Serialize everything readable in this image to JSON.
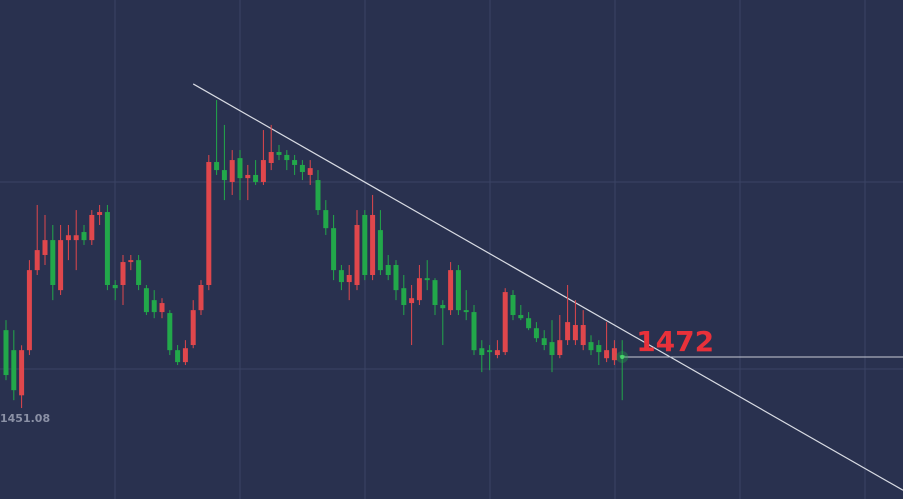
{
  "chart_data": {
    "type": "candlestick",
    "up_color": "#e0474c",
    "down_color": "#22a84a",
    "xlim": [
      -0.77,
      115
    ],
    "ylim": [
      1413.8,
      1618.3
    ],
    "open": [
      1483.0,
      1474.8,
      1456.3,
      1474.8,
      1507.6,
      1513.8,
      1519.9,
      1499.4,
      1519.9,
      1519.9,
      1523.2,
      1519.9,
      1530.2,
      1531.4,
      1501.5,
      1501.5,
      1510.9,
      1511.7,
      1500.2,
      1495.3,
      1490.4,
      1490.0,
      1474.8,
      1469.9,
      1476.9,
      1491.2,
      1501.5,
      1551.9,
      1548.6,
      1543.7,
      1553.5,
      1545.3,
      1546.6,
      1543.7,
      1551.5,
      1556.0,
      1554.8,
      1552.7,
      1550.7,
      1546.6,
      1544.5,
      1532.2,
      1524.8,
      1507.6,
      1502.7,
      1501.5,
      1530.2,
      1505.6,
      1524.0,
      1509.7,
      1509.7,
      1500.2,
      1494.1,
      1495.3,
      1504.3,
      1503.5,
      1493.3,
      1491.2,
      1507.6,
      1491.2,
      1490.4,
      1475.6,
      1474.8,
      1472.8,
      1474.0,
      1497.4,
      1489.2,
      1487.9,
      1483.8,
      1479.7,
      1478.1,
      1472.8,
      1478.9,
      1478.9,
      1476.9,
      1478.1,
      1476.9,
      1471.5,
      1470.7,
      1472.8
    ],
    "high": [
      1487.1,
      1483.0,
      1476.8,
      1511.7,
      1534.3,
      1530.2,
      1526.1,
      1526.1,
      1526.1,
      1532.2,
      1526.1,
      1532.2,
      1534.3,
      1534.3,
      1503.5,
      1513.8,
      1513.8,
      1513.8,
      1501.5,
      1499.4,
      1496.1,
      1491.2,
      1476.9,
      1478.9,
      1495.3,
      1503.5,
      1554.8,
      1577.3,
      1567.1,
      1556.8,
      1556.8,
      1550.7,
      1552.7,
      1565.0,
      1567.1,
      1558.9,
      1556.8,
      1554.8,
      1552.7,
      1552.7,
      1548.6,
      1536.3,
      1530.2,
      1509.7,
      1509.7,
      1532.2,
      1532.2,
      1538.4,
      1532.2,
      1513.8,
      1511.7,
      1505.6,
      1501.5,
      1509.7,
      1511.7,
      1504.3,
      1495.3,
      1510.9,
      1509.7,
      1499.4,
      1493.3,
      1478.9,
      1476.9,
      1478.9,
      1500.2,
      1499.4,
      1493.3,
      1490.4,
      1486.3,
      1483.0,
      1487.1,
      1489.2,
      1501.5,
      1495.3,
      1491.2,
      1480.9,
      1478.9,
      1486.3,
      1478.9,
      1478.9
    ],
    "low": [
      1462.5,
      1454.3,
      1451.08,
      1472.8,
      1505.6,
      1509.7,
      1495.3,
      1497.4,
      1511.7,
      1507.6,
      1517.9,
      1517.9,
      1526.1,
      1499.4,
      1495.3,
      1493.3,
      1507.6,
      1499.4,
      1489.2,
      1487.9,
      1487.9,
      1472.8,
      1468.7,
      1468.7,
      1475.6,
      1489.2,
      1499.4,
      1546.6,
      1536.3,
      1538.4,
      1536.3,
      1536.3,
      1542.5,
      1542.5,
      1548.6,
      1552.7,
      1548.6,
      1546.6,
      1544.5,
      1542.5,
      1530.2,
      1522.0,
      1503.5,
      1499.4,
      1495.3,
      1499.4,
      1503.5,
      1503.5,
      1505.6,
      1503.5,
      1495.3,
      1489.2,
      1476.9,
      1493.3,
      1499.4,
      1489.2,
      1476.9,
      1489.2,
      1489.2,
      1487.1,
      1472.8,
      1465.8,
      1466.6,
      1471.5,
      1472.8,
      1487.1,
      1487.1,
      1483.0,
      1478.1,
      1474.8,
      1465.8,
      1471.5,
      1476.9,
      1476.9,
      1474.8,
      1472.8,
      1468.7,
      1469.9,
      1468.7,
      1454.3
    ],
    "close": [
      1464.6,
      1458.4,
      1474.8,
      1507.6,
      1515.8,
      1519.9,
      1501.5,
      1519.9,
      1521.9,
      1521.9,
      1519.9,
      1530.2,
      1531.4,
      1501.5,
      1500.2,
      1510.9,
      1511.7,
      1501.5,
      1490.4,
      1490.4,
      1494.1,
      1474.8,
      1469.9,
      1475.6,
      1491.2,
      1501.5,
      1551.9,
      1548.6,
      1544.5,
      1552.7,
      1545.3,
      1546.6,
      1543.7,
      1552.7,
      1556.0,
      1554.8,
      1552.7,
      1550.7,
      1547.8,
      1549.4,
      1532.2,
      1524.8,
      1507.6,
      1502.7,
      1505.6,
      1526.1,
      1505.6,
      1530.2,
      1507.6,
      1505.6,
      1499.4,
      1493.3,
      1496.1,
      1504.3,
      1503.5,
      1493.3,
      1492.0,
      1507.6,
      1491.2,
      1490.4,
      1474.8,
      1472.8,
      1474.0,
      1474.8,
      1498.6,
      1489.2,
      1487.9,
      1483.8,
      1479.7,
      1476.9,
      1472.8,
      1478.9,
      1486.3,
      1485.1,
      1485.1,
      1474.8,
      1474.0,
      1474.8,
      1475.6,
      1471.9
    ],
    "level": 1472,
    "trendline": {
      "x": [
        24,
        115
      ],
      "y": [
        1583.9,
        1417.4
      ]
    }
  }
}
